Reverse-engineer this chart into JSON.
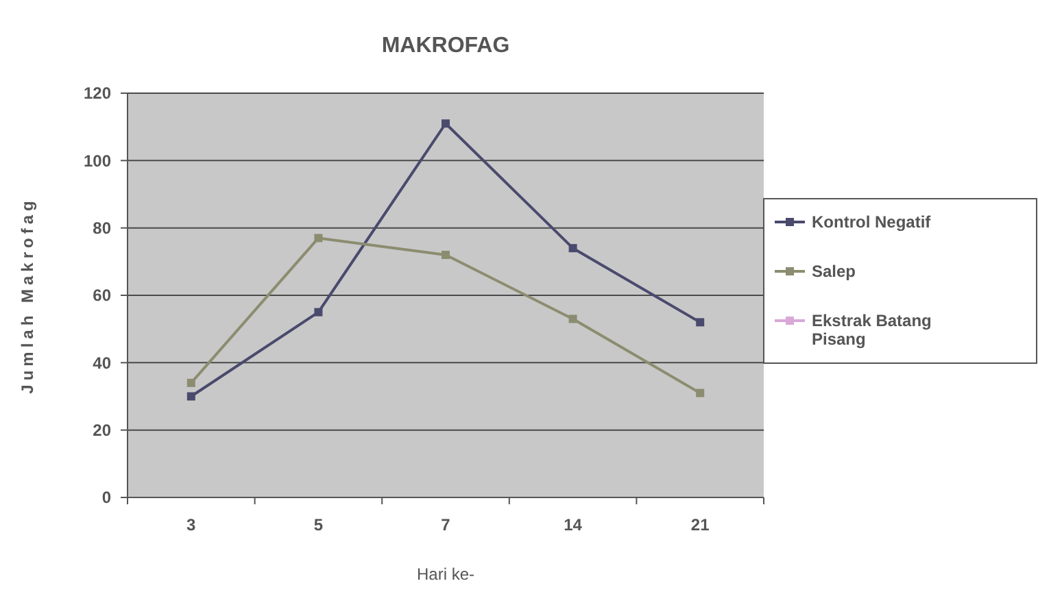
{
  "chart_data": {
    "type": "line",
    "title": "MAKROFAG",
    "xlabel": "Hari ke-",
    "ylabel": "Jumlah Makrofag",
    "categories": [
      "3",
      "5",
      "7",
      "14",
      "21"
    ],
    "series": [
      {
        "name": "Kontrol Negatif",
        "color": "#4a4a6e",
        "values": [
          30,
          55,
          111,
          74,
          52
        ]
      },
      {
        "name": "Salep",
        "color": "#8c8c70",
        "values": [
          34,
          77,
          72,
          53,
          31
        ]
      },
      {
        "name": "Ekstrak Batang Pisang",
        "color": "#d8a8d8",
        "values": [
          null,
          null,
          null,
          null,
          null
        ]
      }
    ],
    "ylim": [
      0,
      120
    ],
    "yticks": [
      0,
      20,
      40,
      60,
      80,
      100,
      120
    ],
    "grid": "y",
    "legend": "right",
    "marker": "square",
    "line_style": "solid"
  }
}
